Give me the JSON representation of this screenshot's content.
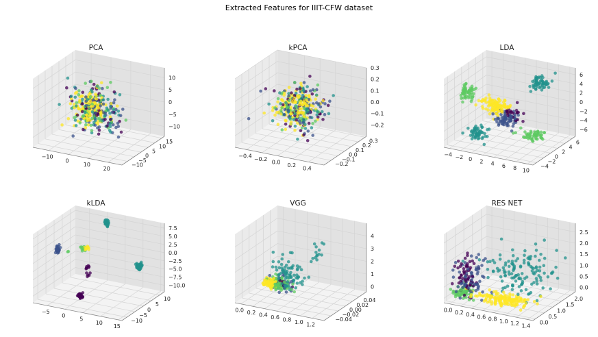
{
  "figure": {
    "title": "Extracted Features for IIIT-CFW dataset"
  },
  "colors": {
    "viridis": [
      "#440154",
      "#3b528b",
      "#21918c",
      "#5ec962",
      "#fde725"
    ],
    "pane_left": "#ebebeb",
    "pane_right": "#e2e2e2",
    "pane_floor": "#f3f3f3",
    "grid": "#d4d4d4"
  },
  "chart_data": [
    {
      "type": "scatter3d",
      "title": "PCA",
      "xlim": [
        -18,
        27
      ],
      "ylim": [
        -14,
        17
      ],
      "zlim": [
        -14,
        14
      ],
      "x_ticks": [
        -10,
        0,
        10,
        20
      ],
      "y_ticks": [
        -10,
        -5,
        0,
        5,
        10,
        15
      ],
      "z_ticks": [
        -10,
        -5,
        0,
        5,
        10
      ],
      "x_tick_labels": [
        "−10",
        "0",
        "10",
        "20"
      ],
      "y_tick_labels": [
        "−10",
        "−5",
        "0",
        "5",
        "10",
        "15"
      ],
      "z_tick_labels": [
        "−10",
        "−5",
        "0",
        "5",
        "10"
      ],
      "clusters": [
        {
          "class": 0,
          "center": [
            5,
            0,
            0
          ],
          "spread": [
            6,
            4,
            4.5
          ],
          "count": 45
        },
        {
          "class": 1,
          "center": [
            5,
            0,
            0
          ],
          "spread": [
            6,
            4,
            4.5
          ],
          "count": 55
        },
        {
          "class": 2,
          "center": [
            4,
            0,
            0
          ],
          "spread": [
            6,
            4,
            4.5
          ],
          "count": 60
        },
        {
          "class": 3,
          "center": [
            3,
            0,
            0
          ],
          "spread": [
            5,
            4,
            4
          ],
          "count": 55
        },
        {
          "class": 4,
          "center": [
            1,
            0,
            0
          ],
          "spread": [
            4,
            3.5,
            3.5
          ],
          "count": 130
        }
      ]
    },
    {
      "type": "scatter3d",
      "title": "kPCA",
      "xlim": [
        -0.55,
        0.6
      ],
      "ylim": [
        -0.3,
        0.32
      ],
      "zlim": [
        -0.3,
        0.3
      ],
      "x_ticks": [
        -0.4,
        -0.2,
        0.0,
        0.2,
        0.4
      ],
      "y_ticks": [
        -0.2,
        -0.1,
        0.0,
        0.1,
        0.2,
        0.3
      ],
      "z_ticks": [
        -0.2,
        -0.1,
        0.0,
        0.1,
        0.2,
        0.3
      ],
      "x_tick_labels": [
        "−0.4",
        "−0.2",
        "0.0",
        "0.2",
        "0.4"
      ],
      "y_tick_labels": [
        "−0.2",
        "−0.1",
        "0.0",
        "0.1",
        "0.2",
        "0.3"
      ],
      "z_tick_labels": [
        "−0.2",
        "−0.1",
        "0.0",
        "0.1",
        "0.2",
        "0.3"
      ],
      "clusters": [
        {
          "class": 0,
          "center": [
            0.05,
            0,
            0
          ],
          "spread": [
            0.15,
            0.1,
            0.1
          ],
          "count": 45
        },
        {
          "class": 1,
          "center": [
            0.05,
            0,
            0
          ],
          "spread": [
            0.15,
            0.1,
            0.1
          ],
          "count": 55
        },
        {
          "class": 2,
          "center": [
            0.03,
            0,
            0
          ],
          "spread": [
            0.15,
            0.1,
            0.1
          ],
          "count": 60
        },
        {
          "class": 3,
          "center": [
            0.0,
            0,
            0
          ],
          "spread": [
            0.13,
            0.09,
            0.09
          ],
          "count": 55
        },
        {
          "class": 4,
          "center": [
            -0.03,
            0,
            0
          ],
          "spread": [
            0.11,
            0.08,
            0.08
          ],
          "count": 130
        }
      ]
    },
    {
      "type": "scatter3d",
      "title": "LDA",
      "xlim": [
        -5,
        11
      ],
      "ylim": [
        -5,
        7
      ],
      "zlim": [
        -7.5,
        7.5
      ],
      "x_ticks": [
        -4,
        -2,
        0,
        2,
        4,
        6,
        8,
        10
      ],
      "y_ticks": [
        -4,
        -2,
        0,
        2,
        4,
        6
      ],
      "z_ticks": [
        -6,
        -4,
        -2,
        0,
        2,
        4,
        6
      ],
      "x_tick_labels": [
        "−4",
        "−2",
        "0",
        "2",
        "4",
        "6",
        "8",
        "10"
      ],
      "y_tick_labels": [
        "−4",
        "−2",
        "0",
        "2",
        "4",
        "6"
      ],
      "z_tick_labels": [
        "−6",
        "−4",
        "−2",
        "0",
        "2",
        "4",
        "6"
      ],
      "clusters": [
        {
          "class": 2,
          "center": [
            6,
            5,
            4
          ],
          "spread": [
            0.9,
            0.6,
            0.8
          ],
          "count": 60
        },
        {
          "class": 3,
          "center": [
            -4,
            0,
            2
          ],
          "spread": [
            0.7,
            0.6,
            0.8
          ],
          "count": 60
        },
        {
          "class": 4,
          "center": [
            1,
            0,
            0.5
          ],
          "spread": [
            1.2,
            0.6,
            0.8
          ],
          "count": 110
        },
        {
          "class": 1,
          "center": [
            3,
            0,
            -2
          ],
          "spread": [
            1.1,
            0.7,
            0.8
          ],
          "count": 70
        },
        {
          "class": 0,
          "center": [
            4,
            0,
            -0.5
          ],
          "spread": [
            1.0,
            0.6,
            0.8
          ],
          "count": 25
        },
        {
          "class": 2,
          "center": [
            -1,
            -2,
            -5
          ],
          "spread": [
            0.8,
            0.6,
            0.8
          ],
          "count": 55
        },
        {
          "class": 3,
          "center": [
            9,
            -2,
            -3
          ],
          "spread": [
            1.0,
            0.6,
            0.7
          ],
          "count": 55
        }
      ]
    },
    {
      "type": "scatter3d",
      "title": "kLDA",
      "xlim": [
        -9,
        16
      ],
      "ylim": [
        -13,
        13
      ],
      "zlim": [
        -12,
        9
      ],
      "x_ticks": [
        -5,
        0,
        5,
        10,
        15
      ],
      "y_ticks": [
        -10,
        -5,
        0,
        5,
        10
      ],
      "z_ticks": [
        -10.0,
        -7.5,
        -5.0,
        -2.5,
        0.0,
        2.5,
        5.0,
        7.5
      ],
      "x_tick_labels": [
        "−5",
        "0",
        "5",
        "10",
        "15"
      ],
      "y_tick_labels": [
        "−10",
        "−5",
        "0",
        "5",
        "10"
      ],
      "z_tick_labels": [
        "−10.0",
        "−7.5",
        "−5.0",
        "−2.5",
        "0.0",
        "2.5",
        "5.0",
        "7.5"
      ],
      "clusters": [
        {
          "class": 2,
          "center": [
            2,
            8,
            7.5
          ],
          "spread": [
            0.3,
            0.3,
            0.6
          ],
          "count": 30
        },
        {
          "class": 1,
          "center": [
            -8,
            0,
            0
          ],
          "spread": [
            0.3,
            0.4,
            0.6
          ],
          "count": 30
        },
        {
          "class": 2,
          "center": [
            15,
            0,
            0
          ],
          "spread": [
            0.5,
            0.4,
            0.5
          ],
          "count": 45
        },
        {
          "class": 3,
          "center": [
            -1,
            0,
            2
          ],
          "spread": [
            0.3,
            0.3,
            0.4
          ],
          "count": 12
        },
        {
          "class": 4,
          "center": [
            0,
            0,
            2.5
          ],
          "spread": [
            0.35,
            0.3,
            0.4
          ],
          "count": 12
        },
        {
          "class": 0,
          "center": [
            1,
            -6,
            -10
          ],
          "spread": [
            0.3,
            0.3,
            0.4
          ],
          "count": 30
        },
        {
          "class": 0,
          "center": [
            1,
            -1,
            -4
          ],
          "spread": [
            0.2,
            1.0,
            1.3
          ],
          "count": 12
        },
        {
          "class": 3,
          "center": [
            -5,
            0,
            0
          ],
          "spread": [
            0.2,
            0.2,
            0.2
          ],
          "count": 2
        }
      ]
    },
    {
      "type": "scatter3d",
      "title": "VGG",
      "xlim": [
        -0.1,
        1.4
      ],
      "ylim": [
        -0.06,
        0.06
      ],
      "zlim": [
        -0.4,
        5.0
      ],
      "x_ticks": [
        0.0,
        0.2,
        0.4,
        0.6,
        0.8,
        1.0,
        1.2
      ],
      "y_ticks": [
        -0.04,
        -0.02,
        0.0,
        0.02,
        0.04
      ],
      "z_ticks": [
        0,
        1,
        2,
        3,
        4
      ],
      "x_tick_labels": [
        "0.0",
        "0.2",
        "0.4",
        "0.6",
        "0.8",
        "1.0",
        "1.2"
      ],
      "y_tick_labels": [
        "−0.04",
        "−0.02",
        "0.00",
        "0.02",
        "0.04"
      ],
      "z_tick_labels": [
        "0",
        "1",
        "2",
        "3",
        "4"
      ],
      "clusters": [
        {
          "class": 2,
          "center": [
            0.45,
            0,
            1.3
          ],
          "spread": [
            0.12,
            0.006,
            0.7
          ],
          "count": 80
        },
        {
          "class": 2,
          "center": [
            0.95,
            0,
            3.5
          ],
          "spread": [
            0.12,
            0.006,
            0.6
          ],
          "count": 15
        },
        {
          "class": 3,
          "center": [
            0.28,
            0,
            0.3
          ],
          "spread": [
            0.09,
            0.004,
            0.25
          ],
          "count": 100
        },
        {
          "class": 4,
          "center": [
            0.18,
            0,
            0.25
          ],
          "spread": [
            0.07,
            0.004,
            0.2
          ],
          "count": 110
        },
        {
          "class": 1,
          "center": [
            0.35,
            0,
            0.5
          ],
          "spread": [
            0.09,
            0.005,
            0.3
          ],
          "count": 25
        },
        {
          "class": 0,
          "center": [
            0.3,
            0,
            0.4
          ],
          "spread": [
            0.08,
            0.005,
            0.25
          ],
          "count": 10
        }
      ]
    },
    {
      "type": "scatter3d",
      "title": "RES NET",
      "xlim": [
        -0.1,
        1.5
      ],
      "ylim": [
        -0.15,
        2.3
      ],
      "zlim": [
        -0.2,
        2.9
      ],
      "x_ticks": [
        0.0,
        0.2,
        0.4,
        0.6,
        0.8,
        1.0,
        1.2,
        1.4
      ],
      "y_ticks": [
        0.0,
        0.5,
        1.0,
        1.5,
        2.0
      ],
      "z_ticks": [
        0.0,
        0.5,
        1.0,
        1.5,
        2.0,
        2.5
      ],
      "x_tick_labels": [
        "0.0",
        "0.2",
        "0.4",
        "0.6",
        "0.8",
        "1.0",
        "1.2",
        "1.4"
      ],
      "y_tick_labels": [
        "0.0",
        "0.5",
        "1.0",
        "1.5",
        "2.0"
      ],
      "z_tick_labels": [
        "0.0",
        "0.5",
        "1.0",
        "1.5",
        "2.0",
        "2.5"
      ],
      "clusters": [
        {
          "class": 0,
          "center": [
            0.15,
            0.3,
            0.9
          ],
          "spread": [
            0.08,
            0.2,
            0.5
          ],
          "count": 60
        },
        {
          "class": 1,
          "center": [
            0.2,
            0.4,
            0.7
          ],
          "spread": [
            0.1,
            0.25,
            0.5
          ],
          "count": 70
        },
        {
          "class": 2,
          "center": [
            0.9,
            1.2,
            1.0
          ],
          "spread": [
            0.3,
            0.4,
            0.5
          ],
          "count": 140
        },
        {
          "class": 3,
          "center": [
            0.1,
            0.3,
            0.15
          ],
          "spread": [
            0.08,
            0.15,
            0.1
          ],
          "count": 70
        },
        {
          "class": 4,
          "center": [
            0.8,
            0.25,
            0.2
          ],
          "spread": [
            0.25,
            0.2,
            0.12
          ],
          "count": 160
        }
      ]
    }
  ]
}
